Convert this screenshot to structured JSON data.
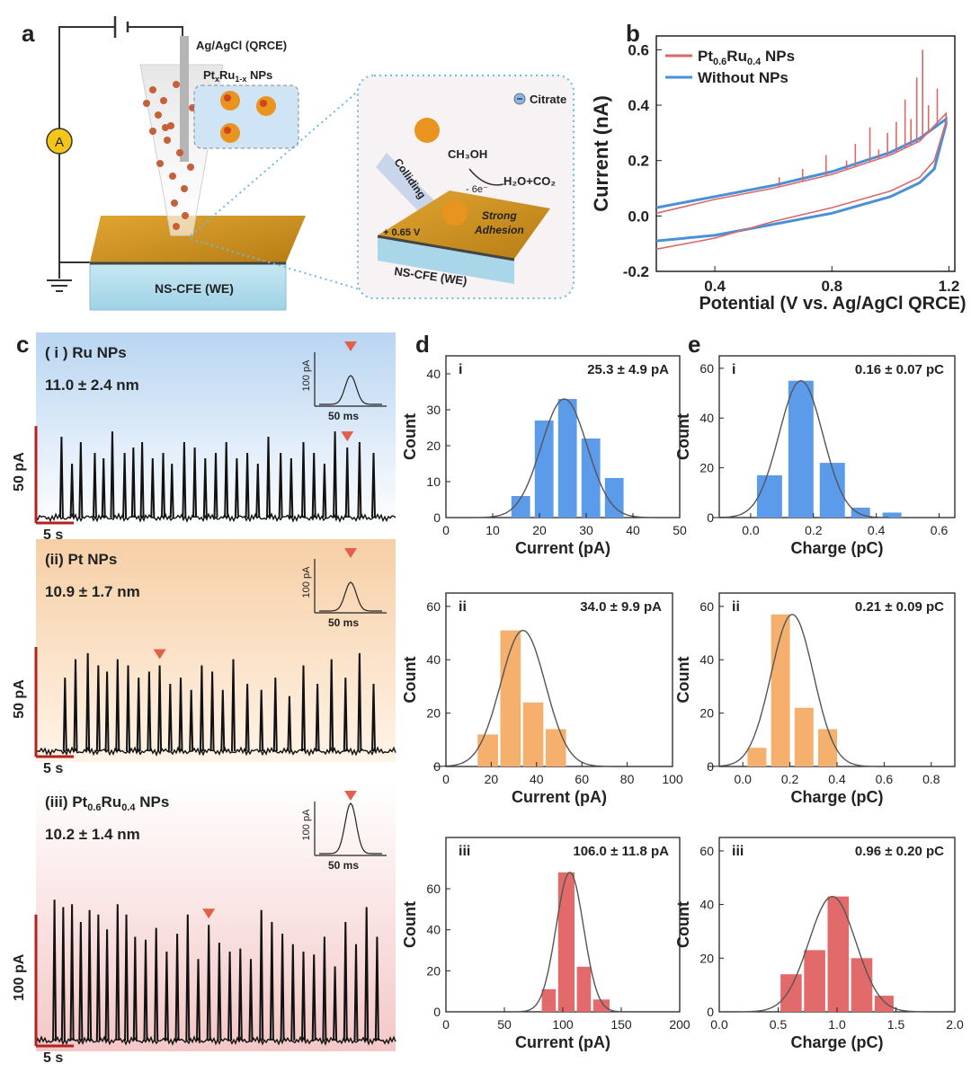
{
  "panel_letters": {
    "a": "a",
    "b": "b",
    "c": "c",
    "d": "d",
    "e": "e"
  },
  "schematic": {
    "electrode_label": "Ag/AgCl (QRCE)",
    "nps_label_prefix": "Pt",
    "nps_label_x": "x",
    "nps_label_mid": "Ru",
    "nps_label_1x": "1-x",
    "nps_label_suffix": " NPs",
    "ammeter": "A",
    "we_label": "NS-CFE (WE)",
    "citrate": "Citrate",
    "colliding": "Colliding",
    "methanol": "CH₃OH",
    "electrons": "- 6e⁻",
    "products": "H₂O+CO₂",
    "strong_adhesion_1": "Strong",
    "strong_adhesion_2": "Adhesion",
    "potential": "+ 0.65 V",
    "we_label_zoom": "NS-CFE (WE)"
  },
  "chart_data": [
    {
      "id": "b",
      "type": "line",
      "title": "",
      "xlabel": "Potential (V vs. Ag/AgCl QRCE)",
      "ylabel": "Current (nA)",
      "xlim": [
        0.2,
        1.22
      ],
      "ylim": [
        -0.2,
        0.65
      ],
      "xticks": [
        "0.4",
        "0.8",
        "1.2"
      ],
      "xtick_values": [
        0.4,
        0.8,
        1.2
      ],
      "yticks": [
        "-0.2",
        "0.0",
        "0.2",
        "0.4",
        "0.6"
      ],
      "ytick_values": [
        -0.2,
        0.0,
        0.2,
        0.4,
        0.6
      ],
      "legend": [
        {
          "name_prefix": "Pt",
          "sub1": "0.6",
          "mid": "Ru",
          "sub2": "0.4",
          "suffix": " NPs",
          "color": "#d9696a"
        },
        {
          "name": "Without NPs",
          "color": "#4a90d9"
        }
      ],
      "series": [
        {
          "name": "Without NPs",
          "color": "#4a90d9",
          "upper": [
            [
              0.2,
              0.03
            ],
            [
              0.4,
              0.07
            ],
            [
              0.6,
              0.11
            ],
            [
              0.8,
              0.16
            ],
            [
              1.0,
              0.23
            ],
            [
              1.1,
              0.28
            ],
            [
              1.19,
              0.35
            ]
          ],
          "lower": [
            [
              1.19,
              0.33
            ],
            [
              1.15,
              0.17
            ],
            [
              1.1,
              0.12
            ],
            [
              1.0,
              0.07
            ],
            [
              0.8,
              0.01
            ],
            [
              0.6,
              -0.03
            ],
            [
              0.4,
              -0.07
            ],
            [
              0.2,
              -0.09
            ]
          ]
        },
        {
          "name": "Pt0.6Ru0.4 NPs",
          "color": "#d9696a",
          "upper": [
            [
              0.2,
              0.01
            ],
            [
              0.4,
              0.06
            ],
            [
              0.6,
              0.1
            ],
            [
              0.8,
              0.15
            ],
            [
              1.0,
              0.22
            ],
            [
              1.1,
              0.27
            ],
            [
              1.19,
              0.37
            ]
          ],
          "lower": [
            [
              1.19,
              0.34
            ],
            [
              1.15,
              0.2
            ],
            [
              1.1,
              0.14
            ],
            [
              1.0,
              0.09
            ],
            [
              0.8,
              0.03
            ],
            [
              0.6,
              -0.02
            ],
            [
              0.4,
              -0.08
            ],
            [
              0.2,
              -0.12
            ]
          ],
          "spikes": [
            [
              0.62,
              0.14
            ],
            [
              0.7,
              0.17
            ],
            [
              0.78,
              0.22
            ],
            [
              0.85,
              0.2
            ],
            [
              0.88,
              0.26
            ],
            [
              0.93,
              0.32
            ],
            [
              0.96,
              0.24
            ],
            [
              0.99,
              0.3
            ],
            [
              1.02,
              0.34
            ],
            [
              1.05,
              0.42
            ],
            [
              1.07,
              0.35
            ],
            [
              1.09,
              0.5
            ],
            [
              1.11,
              0.6
            ],
            [
              1.13,
              0.4
            ],
            [
              1.16,
              0.46
            ]
          ]
        }
      ]
    },
    {
      "id": "c",
      "type": "line",
      "traces": [
        {
          "roman": "( i )",
          "name": "Ru NPs",
          "size": "11.0 ± 2.4 nm",
          "scale_y": "50 pA",
          "scale_x": "5 s",
          "inset_y": "100 pA",
          "inset_x": "50 ms",
          "bg": "#d7e6f7",
          "spikes": [
            12,
            18,
            23,
            31,
            36,
            41,
            48,
            53,
            58,
            64,
            70,
            75,
            82,
            88,
            94,
            100,
            106,
            112,
            118,
            124,
            130,
            137,
            143,
            150,
            156,
            162,
            168,
            175,
            182,
            190
          ],
          "heights": [
            0.75,
            0.5,
            0.7,
            0.6,
            0.55,
            0.8,
            0.6,
            0.65,
            0.7,
            0.55,
            0.6,
            0.5,
            0.7,
            0.65,
            0.55,
            0.6,
            0.7,
            0.55,
            0.6,
            0.5,
            0.75,
            0.6,
            0.55,
            0.7,
            0.6,
            0.5,
            0.8,
            0.65,
            0.7,
            0.6
          ]
        },
        {
          "roman": "(ii)",
          "name": "Pt NPs",
          "size": "10.9 ± 1.7 nm",
          "scale_y": "50 pA",
          "scale_x": "5 s",
          "inset_y": "100 pA",
          "inset_x": "50 ms",
          "bg": "#f9dcc0",
          "spikes": [
            14,
            20,
            27,
            33,
            38,
            44,
            50,
            56,
            62,
            68,
            74,
            80,
            86,
            92,
            98,
            104,
            110,
            118,
            126,
            134,
            142,
            150,
            158,
            166,
            174,
            182,
            190
          ],
          "heights": [
            0.6,
            0.75,
            0.8,
            0.7,
            0.65,
            0.75,
            0.7,
            0.6,
            0.65,
            0.7,
            0.55,
            0.6,
            0.5,
            0.7,
            0.65,
            0.5,
            0.75,
            0.55,
            0.5,
            0.6,
            0.45,
            0.7,
            0.55,
            0.75,
            0.6,
            0.8,
            0.55
          ]
        },
        {
          "roman": "(iii)",
          "name_prefix": "Pt",
          "sub1": "0.6",
          "mid": "Ru",
          "sub2": "0.4",
          "name_suffix": " NPs",
          "size": "10.2 ± 1.4 nm",
          "scale_y": "100 pA",
          "scale_x": "5 s",
          "inset_y": "100 pA",
          "inset_x": "50 ms",
          "bg": "#f7d3d3",
          "spikes": [
            8,
            13,
            18,
            23,
            28,
            33,
            38,
            44,
            49,
            54,
            60,
            66,
            72,
            78,
            84,
            90,
            96,
            102,
            108,
            114,
            120,
            126,
            132,
            138,
            144,
            150,
            156,
            162,
            168,
            174,
            180,
            186,
            192
          ],
          "heights": [
            0.95,
            0.9,
            0.92,
            0.8,
            0.88,
            0.85,
            0.75,
            0.92,
            0.85,
            0.7,
            0.68,
            0.76,
            0.6,
            0.72,
            0.85,
            0.55,
            0.78,
            0.66,
            0.6,
            0.62,
            0.55,
            0.88,
            0.8,
            0.72,
            0.65,
            0.6,
            0.58,
            0.7,
            0.5,
            0.8,
            0.65,
            0.9,
            0.7
          ]
        }
      ]
    },
    {
      "id": "d-i",
      "type": "bar",
      "title": "i",
      "label": "25.3 ± 4.9 pA",
      "xlabel": "Current (pA)",
      "ylabel": "Count",
      "color": "#5b9bea",
      "xlim": [
        0,
        50
      ],
      "ylim": [
        0,
        45
      ],
      "xticks": [
        0,
        10,
        20,
        30,
        40,
        50
      ],
      "yticks": [
        0,
        10,
        20,
        30,
        40
      ],
      "bins": [
        [
          14,
          18,
          6
        ],
        [
          19,
          23,
          27
        ],
        [
          24,
          28,
          33
        ],
        [
          29,
          33,
          22
        ],
        [
          34,
          38,
          11
        ]
      ],
      "fit": {
        "mu": 25.3,
        "sigma": 4.9,
        "peak": 33
      }
    },
    {
      "id": "d-ii",
      "type": "bar",
      "title": "ii",
      "label": "34.0 ± 9.9 pA",
      "xlabel": "Current (pA)",
      "ylabel": "Count",
      "color": "#f5b06e",
      "xlim": [
        0,
        100
      ],
      "ylim": [
        0,
        65
      ],
      "xticks": [
        0,
        20,
        40,
        60,
        80,
        100
      ],
      "yticks": [
        0,
        20,
        40,
        60
      ],
      "bins": [
        [
          14,
          23,
          12
        ],
        [
          24,
          33,
          51
        ],
        [
          34,
          43,
          24
        ],
        [
          44,
          53,
          14
        ]
      ],
      "fit": {
        "mu": 34.0,
        "sigma": 9.9,
        "peak": 51
      }
    },
    {
      "id": "d-iii",
      "type": "bar",
      "title": "iii",
      "label": "106.0 ± 11.8 pA",
      "xlabel": "Current (pA)",
      "ylabel": "Count",
      "color": "#e36a6a",
      "xlim": [
        0,
        200
      ],
      "ylim": [
        0,
        85
      ],
      "xticks": [
        0,
        50,
        100,
        150,
        200
      ],
      "yticks": [
        0,
        20,
        40,
        60
      ],
      "bins": [
        [
          82,
          94,
          11
        ],
        [
          96,
          110,
          68
        ],
        [
          112,
          124,
          22
        ],
        [
          126,
          140,
          6
        ]
      ],
      "fit": {
        "mu": 106.0,
        "sigma": 11.8,
        "peak": 68
      }
    },
    {
      "id": "e-i",
      "type": "bar",
      "title": "i",
      "label": "0.16 ± 0.07 pC",
      "xlabel": "Charge (pC)",
      "ylabel": "Count",
      "color": "#5b9bea",
      "xlim": [
        -0.1,
        0.65
      ],
      "ylim": [
        0,
        65
      ],
      "xticks": [
        "0.0",
        "0.2",
        "0.4",
        "0.6"
      ],
      "xtick_values": [
        0,
        0.2,
        0.4,
        0.6
      ],
      "yticks": [
        0,
        20,
        40,
        60
      ],
      "bins": [
        [
          0.02,
          0.1,
          17
        ],
        [
          0.12,
          0.2,
          55
        ],
        [
          0.22,
          0.3,
          22
        ],
        [
          0.32,
          0.38,
          4
        ],
        [
          0.42,
          0.48,
          2
        ]
      ],
      "fit": {
        "mu": 0.16,
        "sigma": 0.07,
        "peak": 55
      }
    },
    {
      "id": "e-ii",
      "type": "bar",
      "title": "ii",
      "label": "0.21 ± 0.09 pC",
      "xlabel": "Charge (pC)",
      "ylabel": "Count",
      "color": "#f5b06e",
      "xlim": [
        -0.1,
        0.9
      ],
      "ylim": [
        0,
        65
      ],
      "xticks": [
        "0.0",
        "0.2",
        "0.4",
        "0.6",
        "0.8"
      ],
      "xtick_values": [
        0,
        0.2,
        0.4,
        0.6,
        0.8
      ],
      "yticks": [
        0,
        20,
        40,
        60
      ],
      "bins": [
        [
          0.02,
          0.1,
          7
        ],
        [
          0.12,
          0.2,
          57
        ],
        [
          0.22,
          0.3,
          22
        ],
        [
          0.32,
          0.4,
          14
        ]
      ],
      "fit": {
        "mu": 0.21,
        "sigma": 0.09,
        "peak": 57
      }
    },
    {
      "id": "e-iii",
      "type": "bar",
      "title": "iii",
      "label": "0.96 ± 0.20 pC",
      "xlabel": "Charge (pC)",
      "ylabel": "Count",
      "color": "#e36a6a",
      "xlim": [
        0,
        2.0
      ],
      "ylim": [
        0,
        65
      ],
      "xticks": [
        "0.0",
        "0.5",
        "1.0",
        "1.5",
        "2.0"
      ],
      "xtick_values": [
        0,
        0.5,
        1.0,
        1.5,
        2.0
      ],
      "yticks": [
        0,
        20,
        40,
        60
      ],
      "bins": [
        [
          0.52,
          0.7,
          14
        ],
        [
          0.72,
          0.9,
          23
        ],
        [
          0.92,
          1.1,
          43
        ],
        [
          1.12,
          1.3,
          20
        ],
        [
          1.32,
          1.48,
          6
        ]
      ],
      "fit": {
        "mu": 0.96,
        "sigma": 0.2,
        "peak": 43
      }
    }
  ]
}
